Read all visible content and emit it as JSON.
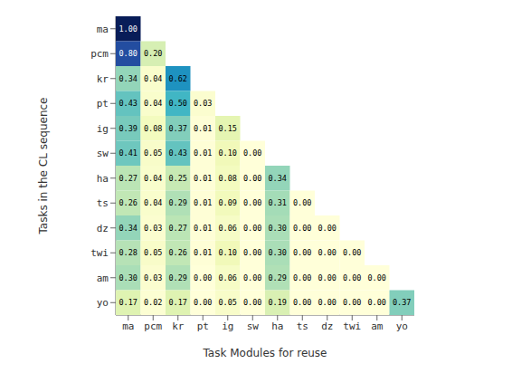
{
  "chart_data": {
    "type": "heatmap",
    "categories": [
      "ma",
      "pcm",
      "kr",
      "pt",
      "ig",
      "sw",
      "ha",
      "ts",
      "dz",
      "twi",
      "am",
      "yo"
    ],
    "values": [
      [
        1.0,
        null,
        null,
        null,
        null,
        null,
        null,
        null,
        null,
        null,
        null,
        null
      ],
      [
        0.8,
        0.2,
        null,
        null,
        null,
        null,
        null,
        null,
        null,
        null,
        null,
        null
      ],
      [
        0.34,
        0.04,
        0.62,
        null,
        null,
        null,
        null,
        null,
        null,
        null,
        null,
        null
      ],
      [
        0.43,
        0.04,
        0.5,
        0.03,
        null,
        null,
        null,
        null,
        null,
        null,
        null,
        null
      ],
      [
        0.39,
        0.08,
        0.37,
        0.01,
        0.15,
        null,
        null,
        null,
        null,
        null,
        null,
        null
      ],
      [
        0.41,
        0.05,
        0.43,
        0.01,
        0.1,
        0.0,
        null,
        null,
        null,
        null,
        null,
        null
      ],
      [
        0.27,
        0.04,
        0.25,
        0.01,
        0.08,
        0.0,
        0.34,
        null,
        null,
        null,
        null,
        null
      ],
      [
        0.26,
        0.04,
        0.29,
        0.01,
        0.09,
        0.0,
        0.31,
        0.0,
        null,
        null,
        null,
        null
      ],
      [
        0.34,
        0.03,
        0.27,
        0.01,
        0.06,
        0.0,
        0.3,
        0.0,
        0.0,
        null,
        null,
        null
      ],
      [
        0.28,
        0.05,
        0.26,
        0.01,
        0.1,
        0.0,
        0.3,
        0.0,
        0.0,
        0.0,
        null,
        null
      ],
      [
        0.3,
        0.03,
        0.29,
        0.0,
        0.06,
        0.0,
        0.29,
        0.0,
        0.0,
        0.0,
        0.0,
        null
      ],
      [
        0.17,
        0.02,
        0.17,
        0.0,
        0.05,
        0.0,
        0.19,
        0.0,
        0.0,
        0.0,
        0.0,
        0.37
      ]
    ],
    "value_labels": [
      [
        "1.00",
        null,
        null,
        null,
        null,
        null,
        null,
        null,
        null,
        null,
        null,
        null
      ],
      [
        "0.80",
        "0.20",
        null,
        null,
        null,
        null,
        null,
        null,
        null,
        null,
        null,
        null
      ],
      [
        "0.34",
        "0.04",
        "0.62",
        null,
        null,
        null,
        null,
        null,
        null,
        null,
        null,
        null
      ],
      [
        "0.43",
        "0.04",
        "0.50",
        "0.03",
        null,
        null,
        null,
        null,
        null,
        null,
        null,
        null
      ],
      [
        "0.39",
        "0.08",
        "0.37",
        "0.01",
        "0.15",
        null,
        null,
        null,
        null,
        null,
        null,
        null
      ],
      [
        "0.41",
        "0.05",
        "0.43",
        "0.01",
        "0.10",
        "0.00",
        null,
        null,
        null,
        null,
        null,
        null
      ],
      [
        "0.27",
        "0.04",
        "0.25",
        "0.01",
        "0.08",
        "0.00",
        "0.34",
        null,
        null,
        null,
        null,
        null
      ],
      [
        "0.26",
        "0.04",
        "0.29",
        "0.01",
        "0.09",
        "0.00",
        "0.31",
        "0.00",
        null,
        null,
        null,
        null
      ],
      [
        "0.34",
        "0.03",
        "0.27",
        "0.01",
        "0.06",
        "0.00",
        "0.30",
        "0.00",
        "0.00",
        null,
        null,
        null
      ],
      [
        "0.28",
        "0.05",
        "0.26",
        "0.01",
        "0.10",
        "0.00",
        "0.30",
        "0.00",
        "0.00",
        "0.00",
        null,
        null
      ],
      [
        "0.30",
        "0.03",
        "0.29",
        "0.00",
        "0.06",
        "0.00",
        "0.29",
        "0.00",
        "0.00",
        "0.00",
        "0.00",
        null
      ],
      [
        "0.17",
        "0.02",
        "0.17",
        "0.00",
        "0.05",
        "0.00",
        "0.19",
        "0.00",
        "0.00",
        "0.00",
        "0.00",
        "0.37"
      ]
    ],
    "color_range": [
      0.0,
      1.0
    ],
    "xlabel": "Task Modules for reuse",
    "ylabel": "Tasks in the CL sequence",
    "data_labels": true
  }
}
